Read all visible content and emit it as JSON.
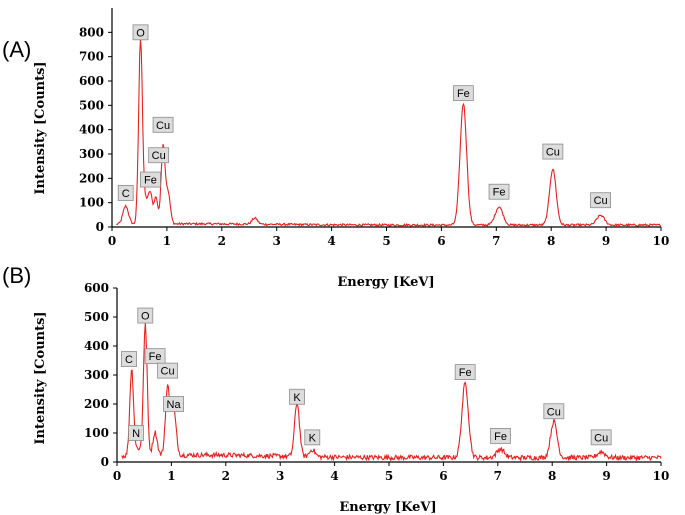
{
  "chart_data": [
    {
      "type": "line",
      "panel_label": "(A)",
      "xlabel": "Energy [KeV]",
      "ylabel": "Intensity [Counts]",
      "xlim": [
        0,
        10
      ],
      "ylim": [
        0,
        900
      ],
      "x_ticks": [
        0,
        1,
        2,
        3,
        4,
        5,
        6,
        7,
        8,
        9,
        10
      ],
      "y_ticks": [
        0,
        100,
        200,
        300,
        400,
        500,
        600,
        700,
        800
      ],
      "color": "#e8211d",
      "baseline": 8,
      "peaks": [
        {
          "x": 0.25,
          "y": 75,
          "w": 0.05
        },
        {
          "x": 0.52,
          "y": 760,
          "w": 0.035
        },
        {
          "x": 0.62,
          "y": 90,
          "w": 0.04
        },
        {
          "x": 0.7,
          "y": 120,
          "w": 0.035
        },
        {
          "x": 0.8,
          "y": 110,
          "w": 0.035
        },
        {
          "x": 0.93,
          "y": 320,
          "w": 0.035
        },
        {
          "x": 1.02,
          "y": 130,
          "w": 0.04
        },
        {
          "x": 2.6,
          "y": 25,
          "w": 0.05
        },
        {
          "x": 6.4,
          "y": 500,
          "w": 0.06
        },
        {
          "x": 7.05,
          "y": 75,
          "w": 0.07
        },
        {
          "x": 8.03,
          "y": 230,
          "w": 0.06
        },
        {
          "x": 8.9,
          "y": 40,
          "w": 0.07
        }
      ],
      "labels": [
        {
          "text": "C",
          "x": 0.25,
          "y": 140
        },
        {
          "text": "O",
          "x": 0.52,
          "y": 800
        },
        {
          "text": "Fe",
          "x": 0.7,
          "y": 195
        },
        {
          "text": "Cu",
          "x": 0.85,
          "y": 295
        },
        {
          "text": "Cu",
          "x": 0.93,
          "y": 420
        },
        {
          "text": "Fe",
          "x": 6.4,
          "y": 550
        },
        {
          "text": "Fe",
          "x": 7.05,
          "y": 145
        },
        {
          "text": "Cu",
          "x": 8.03,
          "y": 310
        },
        {
          "text": "Cu",
          "x": 8.9,
          "y": 110
        }
      ]
    },
    {
      "type": "line",
      "panel_label": "(B)",
      "xlabel": "Energy [KeV]",
      "ylabel": "Intensity [Counts]",
      "xlim": [
        0,
        10
      ],
      "ylim": [
        0,
        600
      ],
      "x_ticks": [
        0,
        1,
        2,
        3,
        4,
        5,
        6,
        7,
        8,
        9,
        10
      ],
      "y_ticks": [
        0,
        100,
        200,
        300,
        400,
        500,
        600
      ],
      "color": "#e8211d",
      "baseline": 15,
      "peaks": [
        {
          "x": 0.27,
          "y": 300,
          "w": 0.035
        },
        {
          "x": 0.39,
          "y": 25,
          "w": 0.04
        },
        {
          "x": 0.52,
          "y": 450,
          "w": 0.035
        },
        {
          "x": 0.7,
          "y": 80,
          "w": 0.04
        },
        {
          "x": 0.93,
          "y": 230,
          "w": 0.04
        },
        {
          "x": 1.04,
          "y": 160,
          "w": 0.045
        },
        {
          "x": 3.31,
          "y": 185,
          "w": 0.045
        },
        {
          "x": 3.59,
          "y": 25,
          "w": 0.05
        },
        {
          "x": 6.4,
          "y": 255,
          "w": 0.06
        },
        {
          "x": 7.05,
          "y": 30,
          "w": 0.07
        },
        {
          "x": 8.03,
          "y": 125,
          "w": 0.06
        },
        {
          "x": 8.9,
          "y": 20,
          "w": 0.07
        }
      ],
      "labels": [
        {
          "text": "C",
          "x": 0.22,
          "y": 355
        },
        {
          "text": "N",
          "x": 0.35,
          "y": 100
        },
        {
          "text": "O",
          "x": 0.52,
          "y": 505
        },
        {
          "text": "Fe",
          "x": 0.7,
          "y": 365
        },
        {
          "text": "Cu",
          "x": 0.93,
          "y": 315
        },
        {
          "text": "Na",
          "x": 1.04,
          "y": 200
        },
        {
          "text": "K",
          "x": 3.31,
          "y": 225
        },
        {
          "text": "K",
          "x": 3.59,
          "y": 85
        },
        {
          "text": "Fe",
          "x": 6.4,
          "y": 310
        },
        {
          "text": "Fe",
          "x": 7.05,
          "y": 90
        },
        {
          "text": "Cu",
          "x": 8.03,
          "y": 175
        },
        {
          "text": "Cu",
          "x": 8.9,
          "y": 85
        }
      ]
    }
  ]
}
